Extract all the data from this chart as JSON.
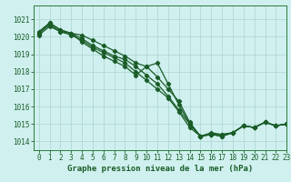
{
  "title": "Graphe pression niveau de la mer (hPa)",
  "bg_color": "#cff0ee",
  "grid_color": "#aad4d0",
  "line_color": "#1a5c28",
  "spine_color": "#2d7a3a",
  "xlim": [
    -0.5,
    23
  ],
  "ylim": [
    1013.5,
    1021.8
  ],
  "yticks": [
    1014,
    1015,
    1016,
    1017,
    1018,
    1019,
    1020,
    1021
  ],
  "xticks": [
    0,
    1,
    2,
    3,
    4,
    5,
    6,
    7,
    8,
    9,
    10,
    11,
    12,
    13,
    14,
    15,
    16,
    17,
    18,
    19,
    20,
    21,
    22,
    23
  ],
  "series": [
    [
      1020.3,
      1020.8,
      1020.4,
      1020.2,
      1020.1,
      1019.8,
      1019.5,
      1019.2,
      1018.9,
      1018.5,
      1018.3,
      1018.5,
      1017.3,
      1016.1,
      1015.0,
      1014.3,
      1014.5,
      1014.4,
      1014.5,
      1014.9,
      1014.8,
      1015.1,
      1014.9,
      1015.0
    ],
    [
      1020.2,
      1020.8,
      1020.4,
      1020.2,
      1019.9,
      1019.5,
      1019.2,
      1018.9,
      1018.7,
      1018.3,
      1017.8,
      1017.3,
      1016.6,
      1015.8,
      1015.0,
      1014.3,
      1014.4,
      1014.4,
      1014.5,
      1014.9,
      1014.8,
      1015.1,
      1014.9,
      1015.0
    ],
    [
      1020.2,
      1020.7,
      1020.3,
      1020.1,
      1019.8,
      1019.4,
      1019.1,
      1018.8,
      1018.5,
      1018.0,
      1017.5,
      1017.0,
      1016.5,
      1015.7,
      1014.8,
      1014.3,
      1014.4,
      1014.3,
      1014.5,
      1014.9,
      1014.8,
      1015.1,
      1014.9,
      1015.0
    ],
    [
      1020.1,
      1020.6,
      1020.3,
      1020.2,
      1019.7,
      1019.3,
      1018.9,
      1018.6,
      1018.3,
      1017.8,
      1018.3,
      1017.7,
      1017.0,
      1016.3,
      1015.1,
      1014.3,
      1014.4,
      1014.3,
      1014.5,
      1014.9,
      1014.8,
      1015.1,
      1014.9,
      1015.0
    ]
  ],
  "marker": "D",
  "marker_size": 2.2,
  "line_width": 0.9,
  "title_fontsize": 6.5,
  "tick_fontsize": 5.5
}
